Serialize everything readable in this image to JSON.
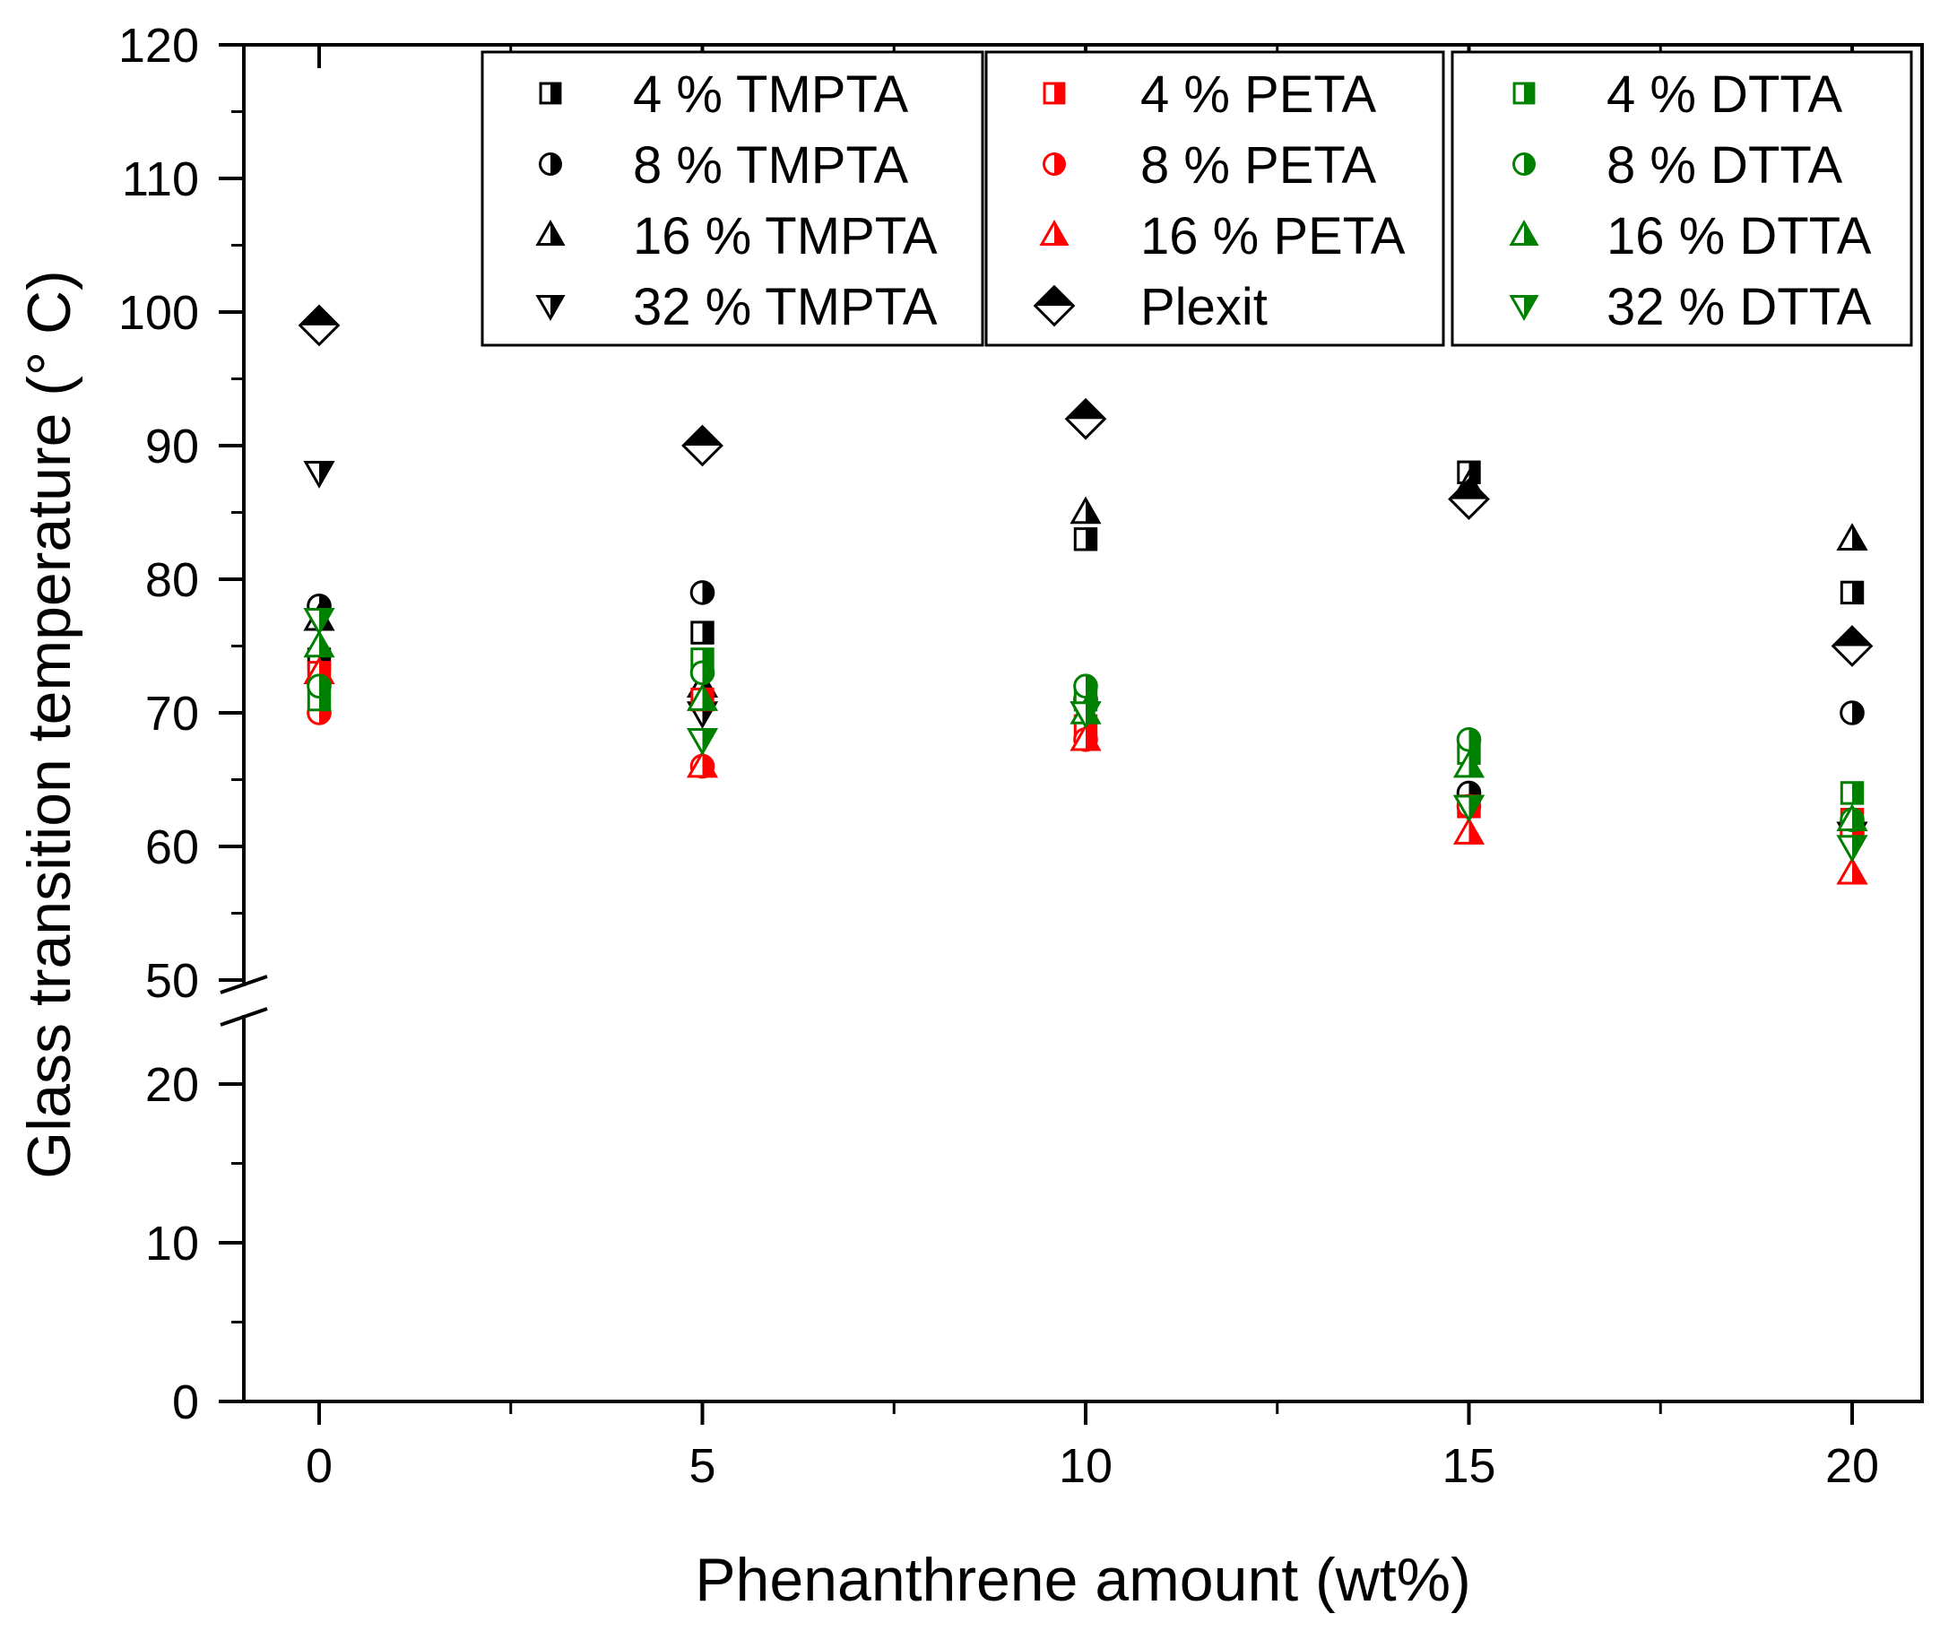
{
  "chart_data": {
    "type": "scatter",
    "xlabel": "Phenanthrene amount (wt%)",
    "ylabel": "Glass transition temperature (° C)",
    "xlim": [
      -1.3,
      21.3
    ],
    "x_ticks": [
      0,
      5,
      10,
      15,
      20
    ],
    "y_axis_break": {
      "lower_range": [
        0,
        26
      ],
      "upper_range": [
        48,
        120
      ],
      "break_between": [
        26,
        48
      ]
    },
    "y_ticks": [
      0,
      10,
      20,
      50,
      60,
      70,
      80,
      90,
      100,
      110,
      120
    ],
    "x_tick_labels": [
      "0",
      "5",
      "10",
      "15",
      "20"
    ],
    "y_tick_labels": [
      "0",
      "10",
      "20",
      "50",
      "60",
      "70",
      "80",
      "90",
      "100",
      "110",
      "120"
    ],
    "colors": {
      "TMPTA": "#000000",
      "PETA": "#ff0000",
      "DTTA": "#008000",
      "Plexit": "#000000"
    },
    "series": [
      {
        "name": "4 % TMPTA",
        "label": "4 % TMPTA",
        "marker": "square",
        "color": "#000000",
        "x": [
          0,
          5,
          10,
          15,
          20
        ],
        "values": [
          74,
          76,
          83,
          88,
          79
        ]
      },
      {
        "name": "8 % TMPTA",
        "label": "8 % TMPTA",
        "marker": "circle",
        "color": "#000000",
        "x": [
          0,
          5,
          10,
          15,
          20
        ],
        "values": [
          78,
          79,
          71,
          64,
          70
        ]
      },
      {
        "name": "16 % TMPTA",
        "label": "16 % TMPTA",
        "marker": "triangle-up",
        "color": "#000000",
        "x": [
          0,
          5,
          10,
          15,
          20
        ],
        "values": [
          77,
          72,
          85,
          87,
          83
        ]
      },
      {
        "name": "32 % TMPTA",
        "label": "32 % TMPTA",
        "marker": "triangle-down",
        "color": "#000000",
        "x": [
          0,
          5,
          10,
          15,
          20
        ],
        "values": [
          88,
          70,
          70,
          63,
          61
        ]
      },
      {
        "name": "4 % PETA",
        "label": "4 % PETA",
        "marker": "square",
        "color": "#ff0000",
        "x": [
          0,
          5,
          10,
          15,
          20
        ],
        "values": [
          73,
          71,
          69,
          63,
          62
        ]
      },
      {
        "name": "8 % PETA",
        "label": "8 % PETA",
        "marker": "circle",
        "color": "#ff0000",
        "x": [
          0,
          5,
          10,
          15,
          20
        ],
        "values": [
          70,
          66,
          68,
          63,
          61
        ]
      },
      {
        "name": "16 % PETA",
        "label": "16 % PETA",
        "marker": "triangle-up",
        "color": "#ff0000",
        "x": [
          0,
          5,
          10,
          15,
          20
        ],
        "values": [
          73,
          66,
          68,
          61,
          58
        ]
      },
      {
        "name": "Plexit",
        "label": "Plexit",
        "marker": "diamond",
        "color": "#000000",
        "x": [
          0,
          5,
          10,
          15,
          20
        ],
        "values": [
          99,
          90,
          92,
          86,
          75
        ]
      },
      {
        "name": "4 % DTTA",
        "label": "4 % DTTA",
        "marker": "square",
        "color": "#008000",
        "x": [
          0,
          5,
          10,
          15,
          20
        ],
        "values": [
          71,
          74,
          71,
          67,
          64
        ]
      },
      {
        "name": "8 % DTTA",
        "label": "8 % DTTA",
        "marker": "circle",
        "color": "#008000",
        "x": [
          0,
          5,
          10,
          15,
          20
        ],
        "values": [
          72,
          73,
          72,
          68,
          62
        ]
      },
      {
        "name": "16 % DTTA",
        "label": "16 % DTTA",
        "marker": "triangle-up",
        "color": "#008000",
        "x": [
          0,
          5,
          10,
          15,
          20
        ],
        "values": [
          75,
          71,
          70,
          66,
          62
        ]
      },
      {
        "name": "32 % DTTA",
        "label": "32 % DTTA",
        "marker": "triangle-down",
        "color": "#008000",
        "x": [
          0,
          5,
          10,
          15,
          20
        ],
        "values": [
          77,
          68,
          70,
          63,
          60
        ]
      }
    ],
    "legend": {
      "placement": "top",
      "columns": [
        [
          "4 % TMPTA",
          "8 % TMPTA",
          "16 % TMPTA",
          "32 % TMPTA"
        ],
        [
          "4 % PETA",
          "8 % PETA",
          "16 % PETA",
          "Plexit"
        ],
        [
          "4 % DTTA",
          "8 % DTTA",
          "16 % DTTA",
          "32 % DTTA"
        ]
      ]
    },
    "grid": false
  }
}
